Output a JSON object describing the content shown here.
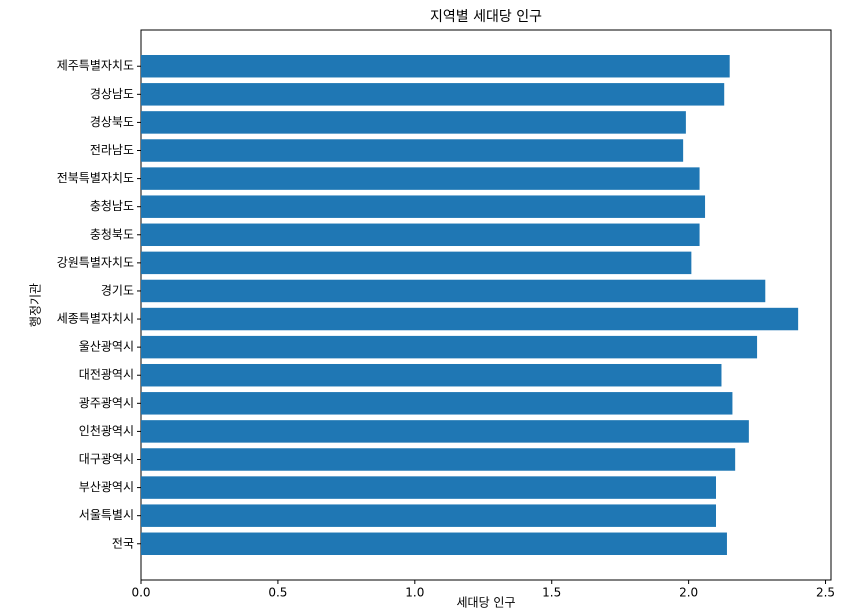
{
  "chart_data": {
    "type": "barh",
    "title": "지역별 세대당 인구",
    "xlabel": "세대당 인구",
    "ylabel": "행정기관",
    "categories": [
      "전국",
      "서울특별시",
      "부산광역시",
      "대구광역시",
      "인천광역시",
      "광주광역시",
      "대전광역시",
      "울산광역시",
      "세종특별자치시",
      "경기도",
      "강원특별자치도",
      "충청북도",
      "충청남도",
      "전북특별자치도",
      "전라남도",
      "경상북도",
      "경상남도",
      "제주특별자치도"
    ],
    "values": [
      2.14,
      2.1,
      2.1,
      2.17,
      2.22,
      2.16,
      2.12,
      2.25,
      2.4,
      2.28,
      2.01,
      2.04,
      2.06,
      2.04,
      1.98,
      1.99,
      2.13,
      2.15
    ],
    "color": "#1f77b4",
    "xlim": [
      0,
      2.52
    ],
    "xticks": [
      {
        "value": 0,
        "label": "0.0"
      },
      0.5,
      {
        "value": 1,
        "label": "1.0"
      },
      1.5,
      {
        "value": 2,
        "label": "2.0"
      },
      2.5
    ]
  }
}
